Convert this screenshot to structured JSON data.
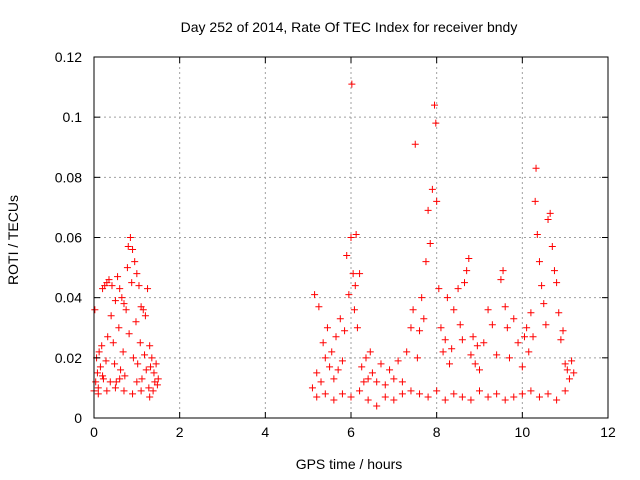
{
  "chart_data": {
    "type": "scatter",
    "title": "Day 252 of 2014, Rate Of TEC Index for receiver bndy",
    "xlabel": "GPS time / hours",
    "ylabel": "ROTI / TECUs",
    "xlim": [
      0,
      12
    ],
    "ylim": [
      0,
      0.12
    ],
    "x_ticks": [
      0,
      2,
      4,
      6,
      8,
      10,
      12
    ],
    "y_ticks": [
      0,
      0.02,
      0.04,
      0.06,
      0.08,
      0.1,
      0.12
    ],
    "x_tick_labels": [
      "0",
      "2",
      "4",
      "6",
      "8",
      "10",
      "12"
    ],
    "y_tick_labels": [
      "0",
      "0.02",
      "0.04",
      "0.06",
      "0.08",
      "0.1",
      "0.12"
    ],
    "grid": true,
    "marker": "+",
    "marker_color": "#ff0000",
    "series": [
      {
        "name": "ROTI",
        "points": [
          [
            0.0,
            0.009
          ],
          [
            0.02,
            0.036
          ],
          [
            0.04,
            0.012
          ],
          [
            0.06,
            0.02
          ],
          [
            0.08,
            0.015
          ],
          [
            0.1,
            0.01
          ],
          [
            0.12,
            0.022
          ],
          [
            0.15,
            0.017
          ],
          [
            0.18,
            0.024
          ],
          [
            0.2,
            0.043
          ],
          [
            0.22,
            0.013
          ],
          [
            0.25,
            0.044
          ],
          [
            0.28,
            0.019
          ],
          [
            0.3,
            0.045
          ],
          [
            0.32,
            0.027
          ],
          [
            0.35,
            0.046
          ],
          [
            0.38,
            0.012
          ],
          [
            0.4,
            0.034
          ],
          [
            0.42,
            0.044
          ],
          [
            0.45,
            0.025
          ],
          [
            0.48,
            0.018
          ],
          [
            0.5,
            0.039
          ],
          [
            0.52,
            0.012
          ],
          [
            0.55,
            0.047
          ],
          [
            0.58,
            0.03
          ],
          [
            0.6,
            0.043
          ],
          [
            0.62,
            0.016
          ],
          [
            0.65,
            0.04
          ],
          [
            0.68,
            0.022
          ],
          [
            0.7,
            0.038
          ],
          [
            0.72,
            0.014
          ],
          [
            0.75,
            0.036
          ],
          [
            0.78,
            0.05
          ],
          [
            0.8,
            0.057
          ],
          [
            0.82,
            0.028
          ],
          [
            0.85,
            0.06
          ],
          [
            0.88,
            0.045
          ],
          [
            0.9,
            0.056
          ],
          [
            0.92,
            0.02
          ],
          [
            0.95,
            0.052
          ],
          [
            0.98,
            0.032
          ],
          [
            1.0,
            0.048
          ],
          [
            1.02,
            0.018
          ],
          [
            1.05,
            0.044
          ],
          [
            1.08,
            0.025
          ],
          [
            1.1,
            0.037
          ],
          [
            1.12,
            0.013
          ],
          [
            1.15,
            0.036
          ],
          [
            1.18,
            0.021
          ],
          [
            1.2,
            0.034
          ],
          [
            1.22,
            0.016
          ],
          [
            1.25,
            0.043
          ],
          [
            1.28,
            0.01
          ],
          [
            1.3,
            0.024
          ],
          [
            1.32,
            0.017
          ],
          [
            1.35,
            0.02
          ],
          [
            1.38,
            0.009
          ],
          [
            1.4,
            0.015
          ],
          [
            1.42,
            0.012
          ],
          [
            1.45,
            0.018
          ],
          [
            1.48,
            0.011
          ],
          [
            1.5,
            0.013
          ],
          [
            0.1,
            0.008
          ],
          [
            0.3,
            0.009
          ],
          [
            0.5,
            0.01
          ],
          [
            0.7,
            0.009
          ],
          [
            0.9,
            0.008
          ],
          [
            1.1,
            0.009
          ],
          [
            1.3,
            0.007
          ],
          [
            0.2,
            0.014
          ],
          [
            0.6,
            0.013
          ],
          [
            1.0,
            0.012
          ],
          [
            5.1,
            0.01
          ],
          [
            5.15,
            0.041
          ],
          [
            5.2,
            0.015
          ],
          [
            5.25,
            0.037
          ],
          [
            5.3,
            0.012
          ],
          [
            5.35,
            0.025
          ],
          [
            5.4,
            0.02
          ],
          [
            5.45,
            0.03
          ],
          [
            5.5,
            0.017
          ],
          [
            5.55,
            0.022
          ],
          [
            5.6,
            0.013
          ],
          [
            5.65,
            0.027
          ],
          [
            5.7,
            0.016
          ],
          [
            5.75,
            0.033
          ],
          [
            5.8,
            0.019
          ],
          [
            5.85,
            0.029
          ],
          [
            5.9,
            0.054
          ],
          [
            5.95,
            0.041
          ],
          [
            6.0,
            0.06
          ],
          [
            6.02,
            0.111
          ],
          [
            6.05,
            0.048
          ],
          [
            6.08,
            0.036
          ],
          [
            6.1,
            0.044
          ],
          [
            6.12,
            0.061
          ],
          [
            6.15,
            0.03
          ],
          [
            6.2,
            0.048
          ],
          [
            6.25,
            0.017
          ],
          [
            6.3,
            0.012
          ],
          [
            6.35,
            0.02
          ],
          [
            6.4,
            0.013
          ],
          [
            6.45,
            0.022
          ],
          [
            6.5,
            0.015
          ],
          [
            6.6,
            0.012
          ],
          [
            6.7,
            0.018
          ],
          [
            6.8,
            0.011
          ],
          [
            6.9,
            0.016
          ],
          [
            7.0,
            0.013
          ],
          [
            7.1,
            0.019
          ],
          [
            7.2,
            0.012
          ],
          [
            7.3,
            0.022
          ],
          [
            7.4,
            0.03
          ],
          [
            7.45,
            0.036
          ],
          [
            7.5,
            0.091
          ],
          [
            7.55,
            0.02
          ],
          [
            7.6,
            0.029
          ],
          [
            7.65,
            0.04
          ],
          [
            7.7,
            0.033
          ],
          [
            7.75,
            0.052
          ],
          [
            7.8,
            0.069
          ],
          [
            7.85,
            0.058
          ],
          [
            7.9,
            0.076
          ],
          [
            7.95,
            0.104
          ],
          [
            7.98,
            0.098
          ],
          [
            8.0,
            0.072
          ],
          [
            8.05,
            0.043
          ],
          [
            8.1,
            0.03
          ],
          [
            8.15,
            0.022
          ],
          [
            8.2,
            0.026
          ],
          [
            8.25,
            0.04
          ],
          [
            8.3,
            0.018
          ],
          [
            8.35,
            0.023
          ],
          [
            8.4,
            0.036
          ],
          [
            8.5,
            0.043
          ],
          [
            8.55,
            0.031
          ],
          [
            8.6,
            0.026
          ],
          [
            8.65,
            0.045
          ],
          [
            8.7,
            0.049
          ],
          [
            8.75,
            0.053
          ],
          [
            8.8,
            0.021
          ],
          [
            8.85,
            0.027
          ],
          [
            8.9,
            0.018
          ],
          [
            8.95,
            0.024
          ],
          [
            9.0,
            0.016
          ],
          [
            9.1,
            0.025
          ],
          [
            9.2,
            0.036
          ],
          [
            9.3,
            0.031
          ],
          [
            9.4,
            0.021
          ],
          [
            9.5,
            0.046
          ],
          [
            9.55,
            0.049
          ],
          [
            9.6,
            0.037
          ],
          [
            9.65,
            0.03
          ],
          [
            9.7,
            0.02
          ],
          [
            9.8,
            0.033
          ],
          [
            9.9,
            0.025
          ],
          [
            10.0,
            0.017
          ],
          [
            10.05,
            0.027
          ],
          [
            10.1,
            0.03
          ],
          [
            10.15,
            0.022
          ],
          [
            10.2,
            0.035
          ],
          [
            10.25,
            0.027
          ],
          [
            10.3,
            0.072
          ],
          [
            10.32,
            0.083
          ],
          [
            10.35,
            0.061
          ],
          [
            10.4,
            0.052
          ],
          [
            10.45,
            0.044
          ],
          [
            10.5,
            0.038
          ],
          [
            10.55,
            0.031
          ],
          [
            10.6,
            0.066
          ],
          [
            10.65,
            0.068
          ],
          [
            10.7,
            0.057
          ],
          [
            10.75,
            0.049
          ],
          [
            10.8,
            0.045
          ],
          [
            10.85,
            0.035
          ],
          [
            10.9,
            0.026
          ],
          [
            10.95,
            0.029
          ],
          [
            11.0,
            0.018
          ],
          [
            11.05,
            0.016
          ],
          [
            11.1,
            0.013
          ],
          [
            11.15,
            0.019
          ],
          [
            11.2,
            0.015
          ],
          [
            5.2,
            0.007
          ],
          [
            5.4,
            0.008
          ],
          [
            5.6,
            0.006
          ],
          [
            5.8,
            0.008
          ],
          [
            6.0,
            0.007
          ],
          [
            6.2,
            0.009
          ],
          [
            6.4,
            0.006
          ],
          [
            6.6,
            0.004
          ],
          [
            6.8,
            0.007
          ],
          [
            7.0,
            0.006
          ],
          [
            7.2,
            0.008
          ],
          [
            7.4,
            0.009
          ],
          [
            7.6,
            0.008
          ],
          [
            7.8,
            0.007
          ],
          [
            8.0,
            0.009
          ],
          [
            8.2,
            0.006
          ],
          [
            8.4,
            0.008
          ],
          [
            8.6,
            0.007
          ],
          [
            8.8,
            0.006
          ],
          [
            9.0,
            0.009
          ],
          [
            9.2,
            0.007
          ],
          [
            9.4,
            0.008
          ],
          [
            9.6,
            0.006
          ],
          [
            9.8,
            0.007
          ],
          [
            10.0,
            0.008
          ],
          [
            10.2,
            0.009
          ],
          [
            10.4,
            0.007
          ],
          [
            10.6,
            0.008
          ],
          [
            10.8,
            0.006
          ],
          [
            11.0,
            0.009
          ]
        ]
      }
    ]
  }
}
